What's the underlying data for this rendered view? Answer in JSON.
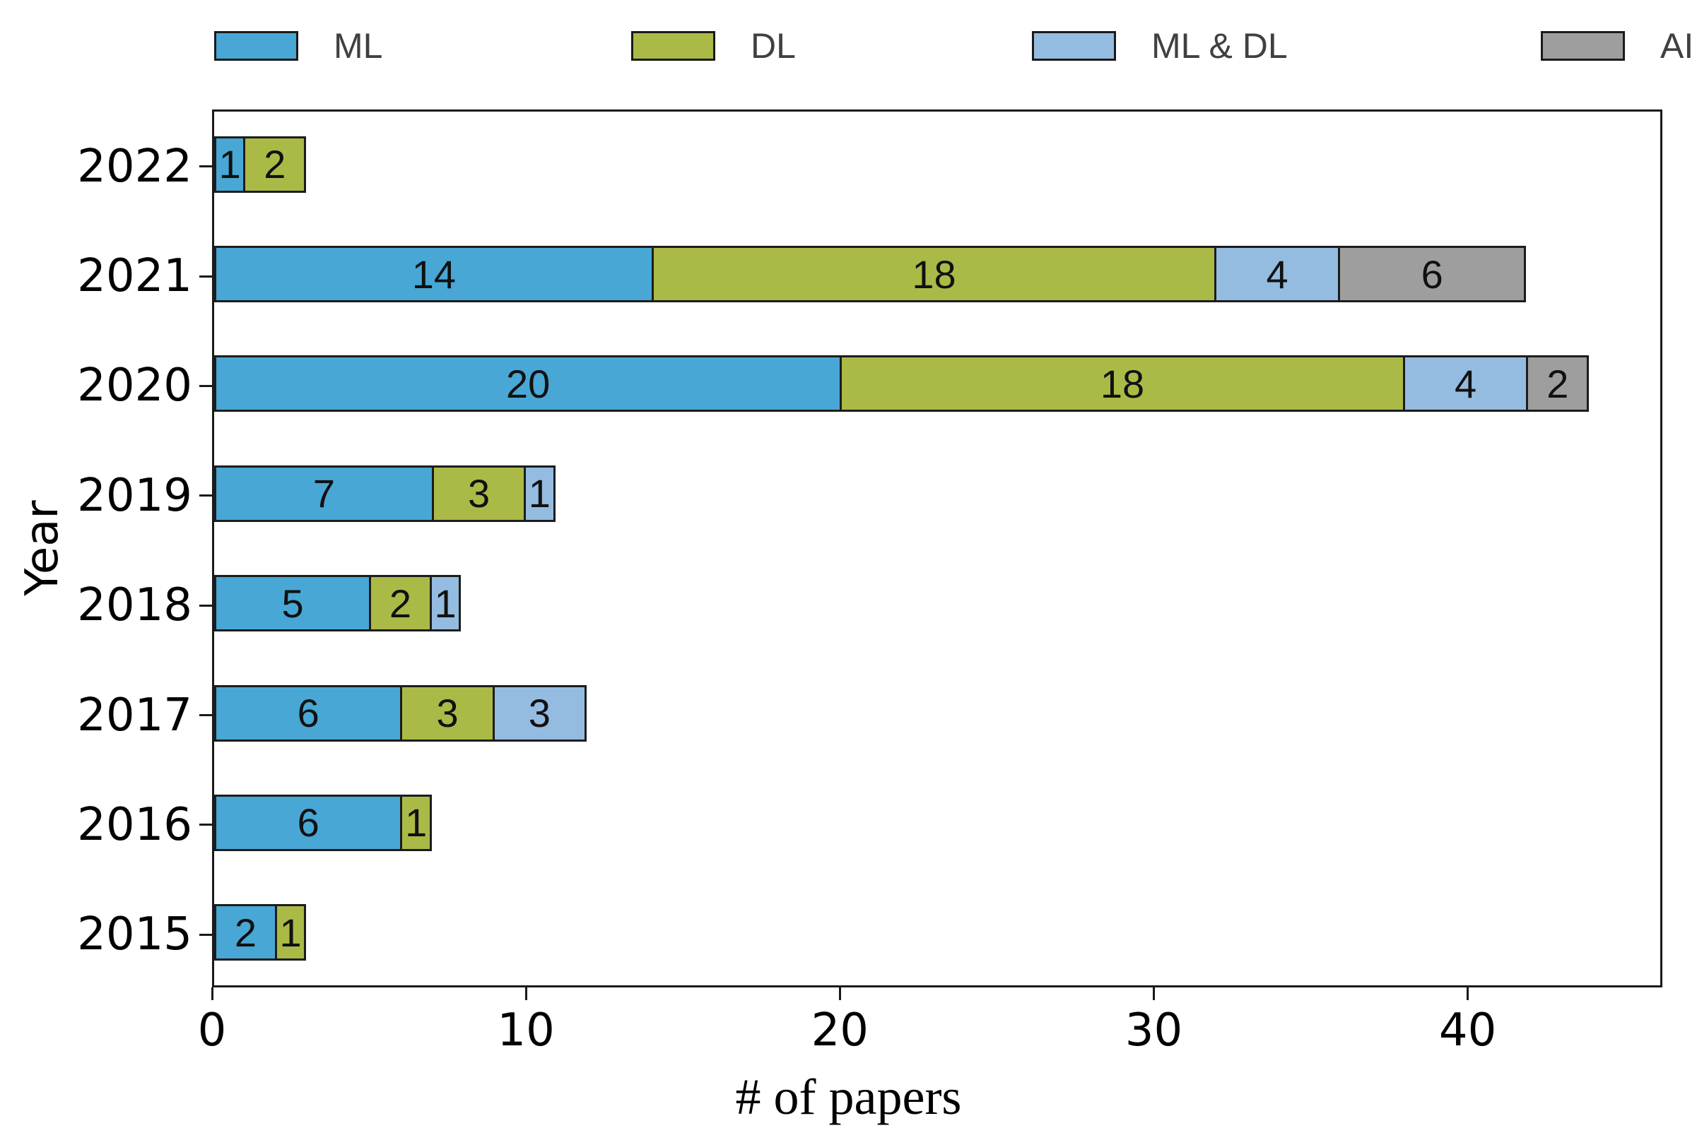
{
  "legend": {
    "items": [
      {
        "label": "ML",
        "color": "#48A7D4"
      },
      {
        "label": "DL",
        "color": "#ABBA46"
      },
      {
        "label": "ML & DL",
        "color": "#94BCE0"
      },
      {
        "label": "AI",
        "color": "#9E9E9E"
      }
    ]
  },
  "chart_data": {
    "type": "bar",
    "orientation": "horizontal",
    "stacked": true,
    "title": "",
    "xlabel": "# of papers",
    "ylabel": "Year",
    "categories": [
      "2022",
      "2021",
      "2020",
      "2019",
      "2018",
      "2017",
      "2016",
      "2015"
    ],
    "series": [
      {
        "name": "ML",
        "color": "#48A7D4",
        "values": [
          1,
          14,
          20,
          7,
          5,
          6,
          6,
          2
        ]
      },
      {
        "name": "DL",
        "color": "#ABBA46",
        "values": [
          2,
          18,
          18,
          3,
          2,
          3,
          1,
          1
        ]
      },
      {
        "name": "ML & DL",
        "color": "#94BCE0",
        "values": [
          0,
          4,
          4,
          1,
          1,
          3,
          0,
          0
        ]
      },
      {
        "name": "AI",
        "color": "#9E9E9E",
        "values": [
          0,
          6,
          2,
          0,
          0,
          0,
          0,
          0
        ]
      }
    ],
    "totals": [
      3,
      42,
      44,
      11,
      8,
      12,
      7,
      3
    ],
    "xticks": [
      0,
      10,
      20,
      30,
      40
    ],
    "xlim": [
      0,
      46.2
    ],
    "bar_value_labels": true,
    "grid": false,
    "legend_position": "top"
  },
  "colors": {
    "spine": "#1a1a1a",
    "legend_text": "#404040",
    "bar_label_text": "#111111",
    "background": "#ffffff"
  }
}
